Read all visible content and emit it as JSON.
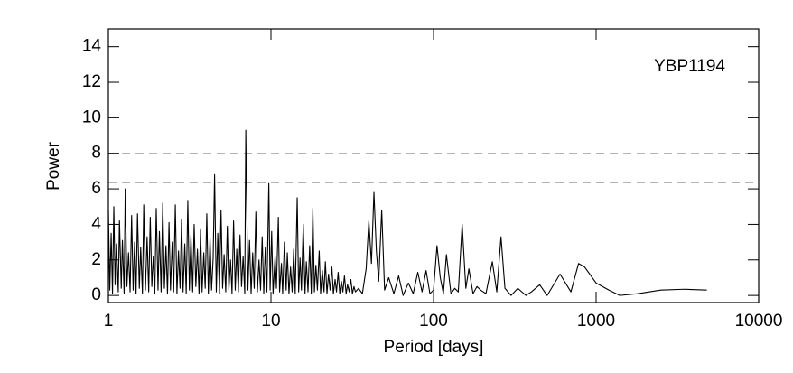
{
  "chart_data": {
    "type": "line",
    "xlabel": "Period [days]",
    "ylabel": "Power",
    "annotation": "YBP1194",
    "xscale": "log",
    "xlim": [
      1,
      10000
    ],
    "xticks": [
      1,
      10,
      100,
      1000,
      10000
    ],
    "ylim": [
      -0.4,
      15
    ],
    "yticks": [
      0,
      2,
      4,
      6,
      8,
      10,
      12,
      14
    ],
    "color": "#000000",
    "hlines": [
      8,
      6.35
    ],
    "hline_color": "#aaaaaa",
    "x": [
      1.0,
      1.02,
      1.04,
      1.06,
      1.08,
      1.1,
      1.12,
      1.15,
      1.17,
      1.2,
      1.22,
      1.25,
      1.27,
      1.3,
      1.33,
      1.36,
      1.39,
      1.42,
      1.45,
      1.48,
      1.51,
      1.55,
      1.58,
      1.62,
      1.65,
      1.69,
      1.73,
      1.77,
      1.81,
      1.85,
      1.89,
      1.93,
      1.97,
      2.02,
      2.06,
      2.11,
      2.16,
      2.21,
      2.26,
      2.31,
      2.36,
      2.41,
      2.47,
      2.52,
      2.58,
      2.64,
      2.7,
      2.76,
      2.82,
      2.88,
      2.95,
      3.01,
      3.08,
      3.15,
      3.22,
      3.3,
      3.37,
      3.45,
      3.53,
      3.61,
      3.69,
      3.77,
      3.86,
      3.94,
      4.03,
      4.12,
      4.22,
      4.31,
      4.41,
      4.5,
      4.61,
      4.71,
      4.82,
      4.93,
      5.04,
      5.15,
      5.27,
      5.39,
      5.51,
      5.64,
      5.76,
      5.89,
      6.03,
      6.16,
      6.3,
      6.45,
      6.59,
      6.74,
      6.9,
      7.0,
      7.05,
      7.21,
      7.38,
      7.55,
      7.72,
      7.89,
      8.07,
      8.25,
      8.44,
      8.63,
      8.83,
      9.03,
      9.23,
      9.44,
      9.7,
      9.88,
      10.1,
      10.3,
      10.6,
      10.8,
      11.1,
      11.3,
      11.6,
      11.8,
      12.1,
      12.4,
      12.6,
      12.9,
      13.2,
      13.5,
      13.8,
      14.1,
      14.5,
      14.8,
      15.1,
      15.4,
      15.8,
      16.2,
      16.5,
      16.9,
      17.3,
      17.7,
      18.1,
      18.5,
      18.9,
      19.3,
      19.8,
      20.2,
      20.7,
      21.2,
      21.6,
      22.1,
      22.6,
      23.1,
      23.7,
      24.2,
      24.8,
      25.3,
      25.9,
      26.5,
      27.1,
      27.7,
      28.3,
      29.0,
      29.6,
      30.3,
      31.0,
      31.7,
      32.4,
      33.1,
      34.6,
      36.5,
      38.5,
      40.0,
      41.5,
      43.0,
      44.5,
      46.0,
      48.0,
      50.0,
      53,
      57,
      61,
      65,
      70,
      75,
      80,
      85,
      90,
      95,
      100,
      105,
      110,
      115,
      120,
      128,
      135,
      142,
      150,
      158,
      165,
      175,
      185,
      195,
      210,
      230,
      245,
      260,
      275,
      300,
      330,
      370,
      400,
      450,
      500,
      600,
      700,
      780,
      850,
      1000,
      1200,
      1400,
      1800,
      2500,
      3500,
      4800
    ],
    "values": [
      4.8,
      0.3,
      3.5,
      0.1,
      5.0,
      0.6,
      2.9,
      0.2,
      4.2,
      0.4,
      3.1,
      0.1,
      6.0,
      0.5,
      2.4,
      0.2,
      4.5,
      0.3,
      3.0,
      0.1,
      4.6,
      0.4,
      2.7,
      0.1,
      5.1,
      0.3,
      3.3,
      0.2,
      4.4,
      0.5,
      2.2,
      0.1,
      4.9,
      0.3,
      3.6,
      0.2,
      5.2,
      0.4,
      2.8,
      0.1,
      4.1,
      0.3,
      3.0,
      0.2,
      5.1,
      0.1,
      2.5,
      0.4,
      4.3,
      0.2,
      2.9,
      0.1,
      5.3,
      0.3,
      3.4,
      0.2,
      4.0,
      0.5,
      2.6,
      0.1,
      3.7,
      0.2,
      2.4,
      0.4,
      4.6,
      0.1,
      3.2,
      0.3,
      2.1,
      6.8,
      0.2,
      3.5,
      0.1,
      4.8,
      0.4,
      2.3,
      0.2,
      3.9,
      0.3,
      2.0,
      0.1,
      4.2,
      0.3,
      2.6,
      0.2,
      3.4,
      0.5,
      2.2,
      0.1,
      9.3,
      7.0,
      0.3,
      3.1,
      0.1,
      2.4,
      0.4,
      4.7,
      0.2,
      2.0,
      0.3,
      3.3,
      0.1,
      2.7,
      0.2,
      6.3,
      0.3,
      3.6,
      0.1,
      2.2,
      0.4,
      4.4,
      0.2,
      1.8,
      0.1,
      3.0,
      0.3,
      2.4,
      0.1,
      1.6,
      0.2,
      2.6,
      0.1,
      5.5,
      0.2,
      2.1,
      0.3,
      4.0,
      0.1,
      1.9,
      0.2,
      2.8,
      0.1,
      4.9,
      0.2,
      1.7,
      0.3,
      2.5,
      0.1,
      1.4,
      0.2,
      1.9,
      0.1,
      1.2,
      0.3,
      1.6,
      0.1,
      0.9,
      0.2,
      1.3,
      0.1,
      0.8,
      0.2,
      1.1,
      0.1,
      0.6,
      0.2,
      0.9,
      0.1,
      0.5,
      0.2,
      0.4,
      0.1,
      1.5,
      4.2,
      1.8,
      5.8,
      2.5,
      0.8,
      4.8,
      0.3,
      1.0,
      0.1,
      1.1,
      0.0,
      0.7,
      0.1,
      1.3,
      0.2,
      1.4,
      0.1,
      0.3,
      2.8,
      1.0,
      0.1,
      2.3,
      0.1,
      0.4,
      0.2,
      4.0,
      0.4,
      1.5,
      0.1,
      0.5,
      0.3,
      0.1,
      1.9,
      0.2,
      3.3,
      0.4,
      0.0,
      0.4,
      0.0,
      0.2,
      0.6,
      0.0,
      1.2,
      0.2,
      1.8,
      1.6,
      0.7,
      0.3,
      0.0,
      0.1,
      0.3,
      0.35,
      0.3
    ]
  }
}
